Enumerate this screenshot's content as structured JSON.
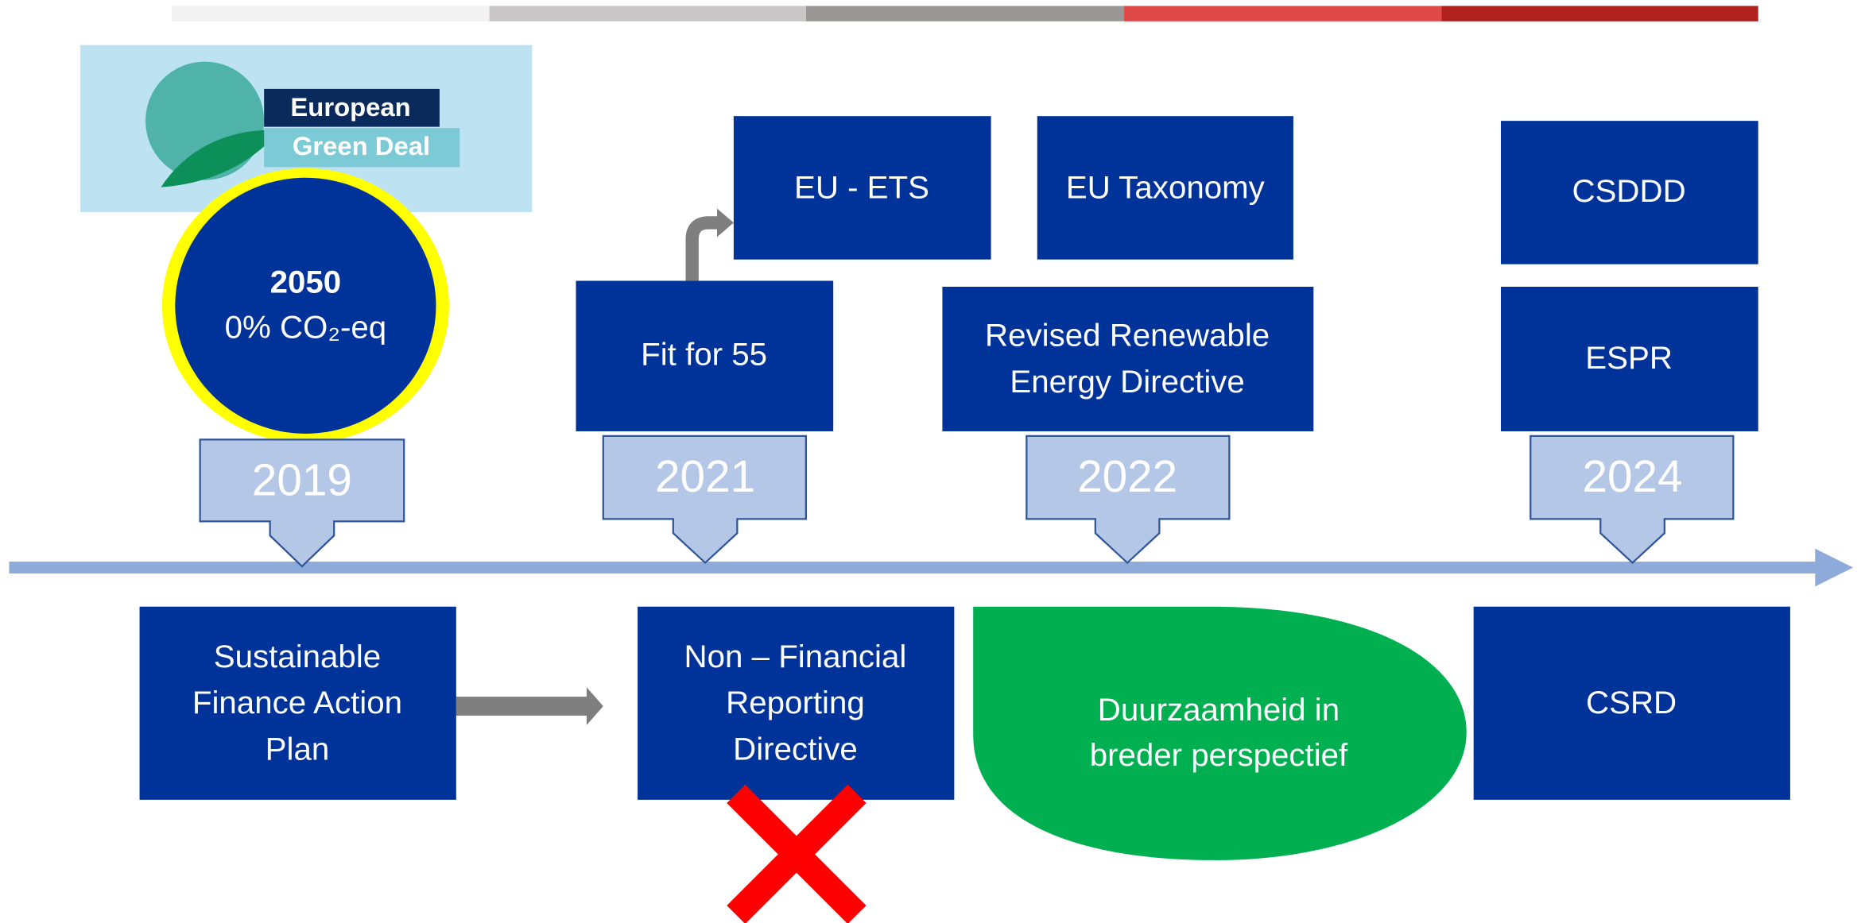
{
  "logo": {
    "line1": "European",
    "line2": "Green Deal"
  },
  "goal": {
    "year": "2050",
    "target": "0% CO₂-eq"
  },
  "years": [
    "2019",
    "2021",
    "2022",
    "2024"
  ],
  "above": {
    "eu_ets": "EU - ETS",
    "eu_taxonomy": "EU Taxonomy",
    "csddd": "CSDDD",
    "fit_for_55": "Fit for 55",
    "rred": [
      "Revised Renewable",
      "Energy Directive"
    ],
    "espr": "ESPR"
  },
  "below": {
    "sfap": [
      "Sustainable",
      "Finance Action",
      "Plan"
    ],
    "nfrd": [
      "Non – Financial",
      "Reporting",
      "Directive"
    ],
    "perspective": [
      "Duurzaamheid in",
      "breder perspectief"
    ],
    "csrd": "CSRD"
  }
}
